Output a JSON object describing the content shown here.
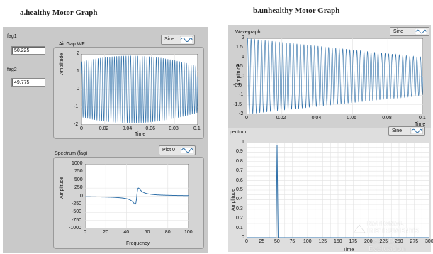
{
  "captions": {
    "left": "a.healthy Motor Graph",
    "right": "b.unhealthy Motor Graph"
  },
  "left_panel": {
    "fag1": {
      "label": "fag1",
      "value": "50.225"
    },
    "fag2": {
      "label": "fag2",
      "value": "49.775"
    },
    "airgap": {
      "title": "Air Gap WF",
      "legend": "Sine",
      "xlabel": "Time",
      "ylabel": "Amplitude",
      "xticks": [
        "0",
        "0.02",
        "0.04",
        "0.06",
        "0.08",
        "0.1"
      ],
      "yticks": [
        "2",
        "1",
        "0",
        "-1",
        "-2"
      ]
    },
    "spectrum": {
      "title": "Spectrum (fag)",
      "legend": "Plot 0",
      "xlabel": "Frequency",
      "ylabel": "Amplitude",
      "xticks": [
        "0",
        "20",
        "40",
        "60",
        "80",
        "100"
      ],
      "yticks": [
        "1000",
        "750",
        "500",
        "250",
        "0",
        "-250",
        "-500",
        "-750",
        "-1000"
      ]
    }
  },
  "right_panel": {
    "wavegraph": {
      "title": "Wavegraph",
      "legend": "Sine",
      "xlabel": "Time",
      "ylabel": "Amplitude",
      "xticks": [
        "0",
        "0.02",
        "0.04",
        "0.06",
        "0.08",
        "0.1"
      ],
      "yticks": [
        "2",
        "1.5",
        "1",
        "0.5",
        "0",
        "-0.5",
        "-1",
        "-1.5",
        "-2"
      ]
    },
    "spectrum": {
      "title": "pectrum",
      "legend": "Sine",
      "xlabel": "Time",
      "ylabel": "Amplitude",
      "xticks": [
        "0",
        "25",
        "50",
        "75",
        "100",
        "125",
        "150",
        "175",
        "200",
        "225",
        "250",
        "275",
        "300"
      ],
      "yticks": [
        "1",
        "0.9",
        "0.8",
        "0.7",
        "0.6",
        "0.5",
        "0.4",
        "0.3",
        "0.2",
        "0.1",
        "0"
      ]
    },
    "watermark": {
      "line1": "NATIONAL",
      "line2": "INSTRUMENTS",
      "line3": "LabVIEW  Evaluation"
    }
  },
  "colors": {
    "plot_line": "#2e6fa8",
    "panel_bg": "#c9c9c9",
    "plot_bg": "#ffffff",
    "grid": "#e2e2e2"
  },
  "icons": [
    "sine-wave-icon"
  ]
}
